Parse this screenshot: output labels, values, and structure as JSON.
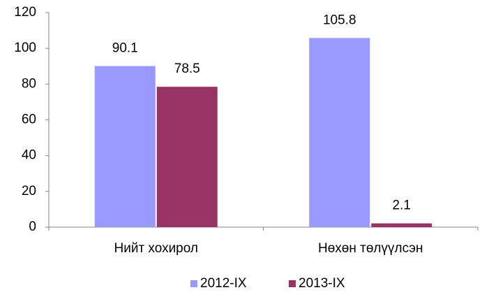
{
  "chart_data": {
    "type": "bar",
    "categories": [
      "Нийт хохирол",
      "Нөхөн төлүүлсэн"
    ],
    "series": [
      {
        "name": "2012-IX",
        "color": "#9999ff",
        "values": [
          90.1,
          105.8
        ]
      },
      {
        "name": "2013-IX",
        "color": "#993366",
        "values": [
          78.5,
          2.1
        ]
      }
    ],
    "ylim": [
      0,
      120
    ],
    "yticks": [
      0,
      20,
      40,
      60,
      80,
      100,
      120
    ],
    "grid": false,
    "legend": "bottom"
  }
}
